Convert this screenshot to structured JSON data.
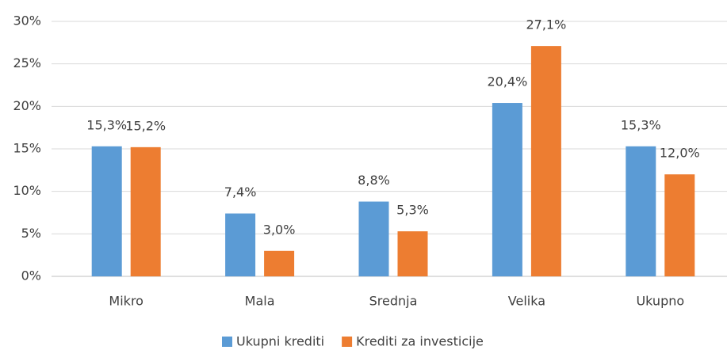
{
  "chart_data": {
    "type": "bar",
    "categories": [
      "Mikro",
      "Mala",
      "Srednja",
      "Velika",
      "Ukupno"
    ],
    "series": [
      {
        "name": "Ukupni krediti",
        "color": "#5b9bd5",
        "values": [
          15.3,
          7.4,
          8.8,
          20.4,
          15.3
        ],
        "value_labels": [
          "15,3%",
          "7,4%",
          "8,8%",
          "20,4%",
          "15,3%"
        ]
      },
      {
        "name": "Krediti za investicije",
        "color": "#ed7d31",
        "values": [
          15.2,
          3.0,
          5.3,
          27.1,
          12.0
        ],
        "value_labels": [
          "15,2%",
          "3,0%",
          "5,3%",
          "27,1%",
          "12,0%"
        ]
      }
    ],
    "ylim": [
      0,
      30
    ],
    "yticks": [
      {
        "value": 0,
        "label": "0%"
      },
      {
        "value": 5,
        "label": "5%"
      },
      {
        "value": 10,
        "label": "10%"
      },
      {
        "value": 15,
        "label": "15%"
      },
      {
        "value": 20,
        "label": "20%"
      },
      {
        "value": 25,
        "label": "25%"
      },
      {
        "value": 30,
        "label": "30%"
      }
    ],
    "grid": true,
    "legend": "bottom"
  }
}
